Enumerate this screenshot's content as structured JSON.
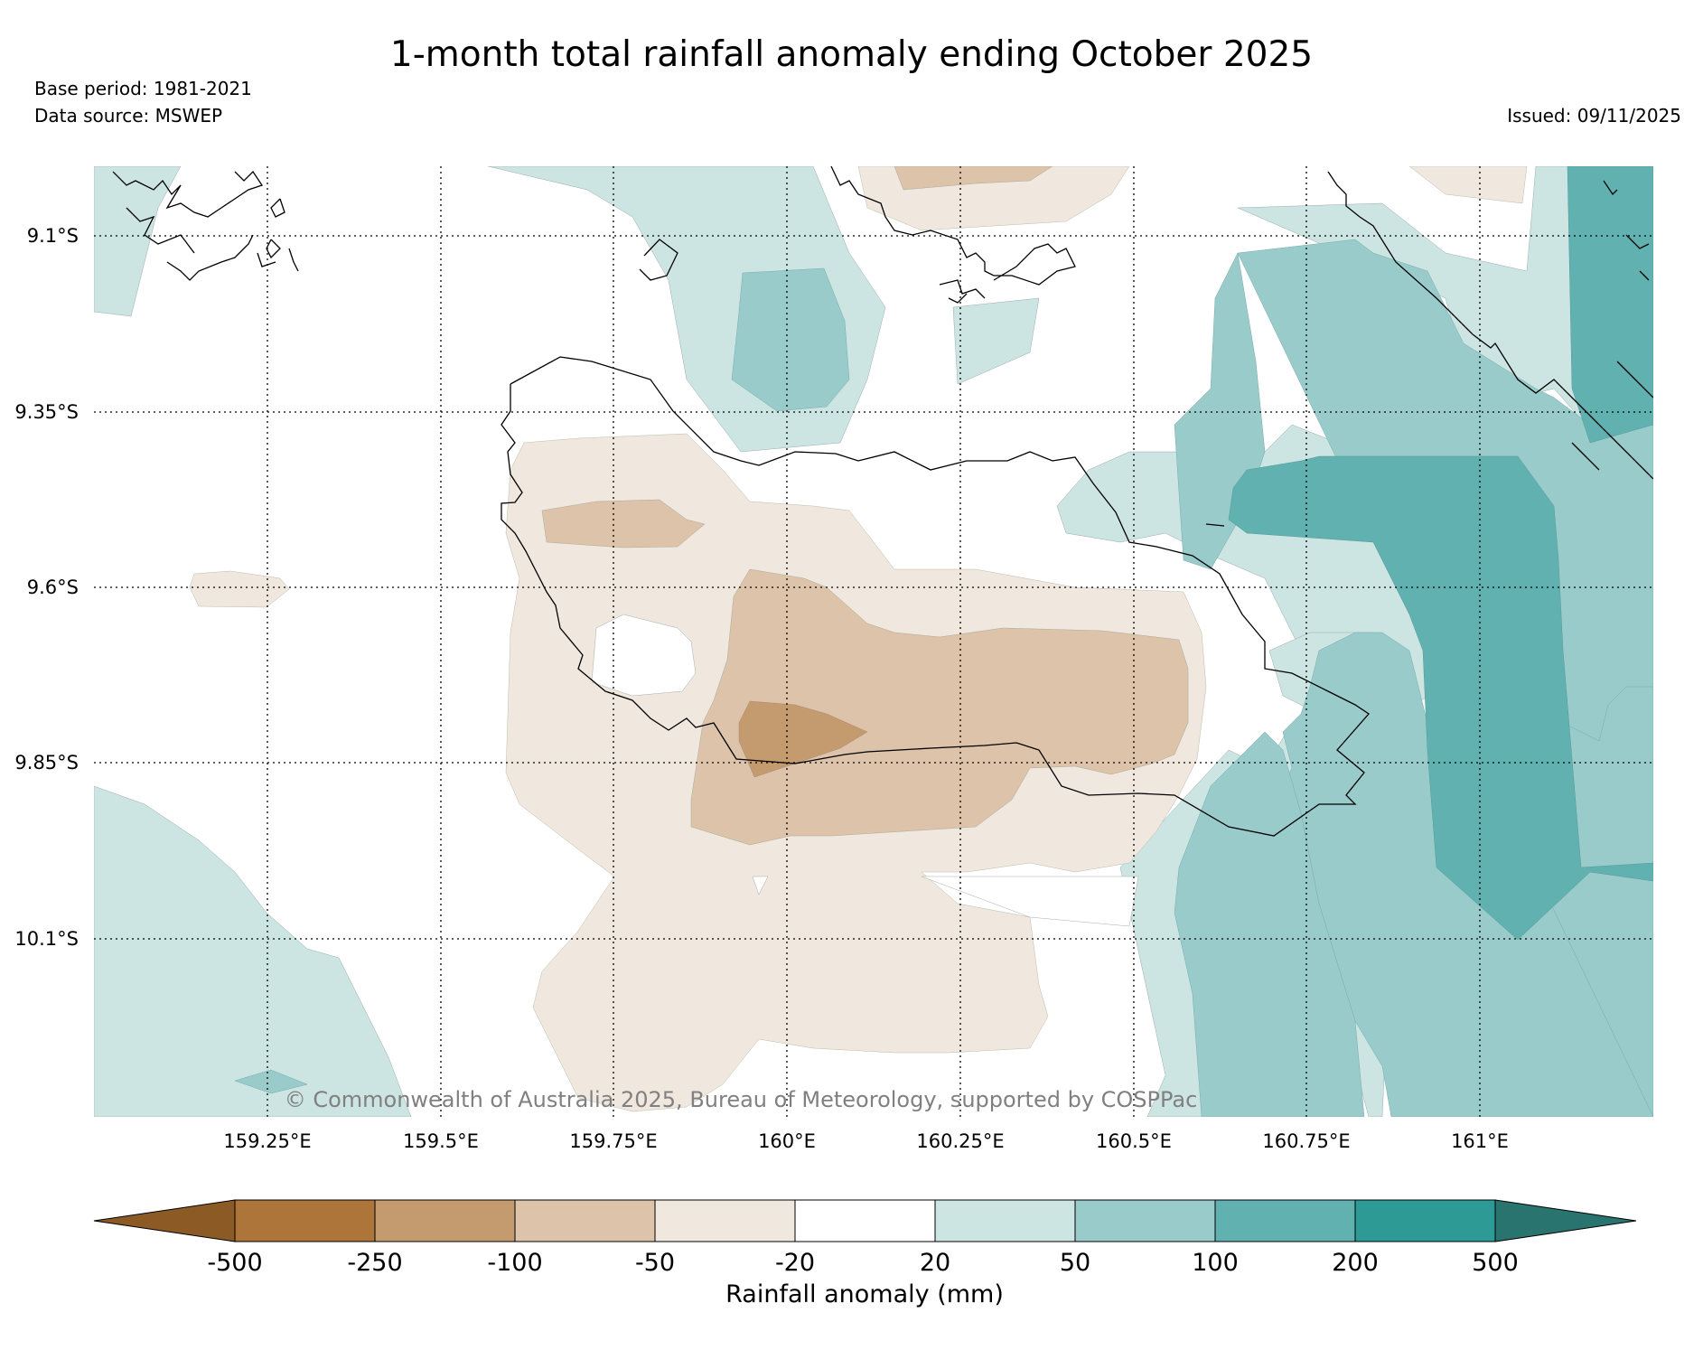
{
  "title": "1-month total rainfall anomaly ending October 2025",
  "base_period": "Base period: 1981-2021",
  "data_source": "Data source: MSWEP",
  "issued": "Issued: 09/11/2025",
  "copyright": "© Commonwealth of Australia 2025, Bureau of Meteorology, supported by COSPPac",
  "map": {
    "lat_labels": [
      "9.1°S",
      "9.35°S",
      "9.6°S",
      "9.85°S",
      "10.1°S"
    ],
    "lon_labels": [
      "159.25°E",
      "159.5°E",
      "159.75°E",
      "160°E",
      "160.25°E",
      "160.5°E",
      "160.75°E",
      "161°E"
    ]
  },
  "legend": {
    "label": "Rainfall anomaly (mm)",
    "ticks": [
      "-500",
      "-250",
      "-100",
      "-50",
      "-20",
      "20",
      "50",
      "100",
      "200",
      "500"
    ],
    "colors": {
      "lt_-500": "#8c5a24",
      "-500_-250": "#ad7539",
      "-250_-100": "#c49a6f",
      "-100_-50": "#dcc3a9",
      "-50_-20": "#f0e7df",
      "-20_20": "#ffffff",
      "20_50": "#cce5e3",
      "50_100": "#98cbc9",
      "100_200": "#62b1b1",
      "200_500": "#2e9a95",
      "gt_500": "#2a7470"
    }
  }
}
